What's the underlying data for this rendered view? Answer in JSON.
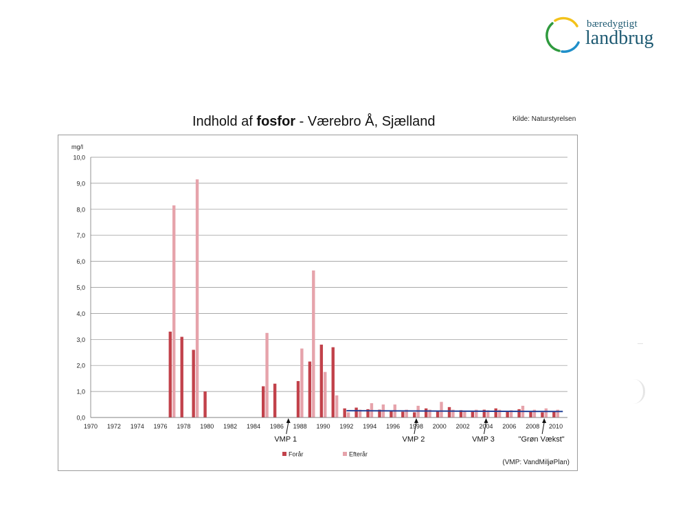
{
  "logo": {
    "small_text": "bæredygtigt",
    "big_text": "landbrug",
    "colors": {
      "yellow": "#f3c21a",
      "green": "#2f9a3e",
      "blue": "#1f8fc9",
      "text": "#1e5a72"
    }
  },
  "source": "Kilde: Naturstyrelsen",
  "chart_data": {
    "type": "bar",
    "title_plain": "Indhold af ",
    "title_bold": "fosfor",
    "title_rest": " - Værebro Å, Sjælland",
    "ylabel": "mg/l",
    "xlabel": "",
    "ylim": [
      0,
      10
    ],
    "yticks": [
      "0,0",
      "1,0",
      "2,0",
      "3,0",
      "4,0",
      "5,0",
      "6,0",
      "7,0",
      "8,0",
      "9,0",
      "10,0"
    ],
    "xlim": [
      1970,
      2011
    ],
    "xticks": [
      "1970",
      "1972",
      "1974",
      "1976",
      "1978",
      "1980",
      "1982",
      "1984",
      "1986",
      "1988",
      "1990",
      "1992",
      "1994",
      "1996",
      "1998",
      "2000",
      "2002",
      "2004",
      "2006",
      "2008",
      "2010"
    ],
    "grid": true,
    "series": [
      {
        "name": "Forår",
        "color": "#c2424b",
        "points": [
          [
            1977,
            3.3
          ],
          [
            1978,
            3.1
          ],
          [
            1979,
            2.6
          ],
          [
            1980,
            1.0
          ],
          [
            1985,
            1.2
          ],
          [
            1986,
            1.3
          ],
          [
            1988,
            1.4
          ],
          [
            1989,
            2.15
          ],
          [
            1990,
            2.8
          ],
          [
            1991,
            2.7
          ],
          [
            1992,
            0.35
          ],
          [
            1993,
            0.38
          ],
          [
            1994,
            0.32
          ],
          [
            1995,
            0.3
          ],
          [
            1996,
            0.25
          ],
          [
            1997,
            0.22
          ],
          [
            1998,
            0.2
          ],
          [
            1999,
            0.35
          ],
          [
            2000,
            0.25
          ],
          [
            2001,
            0.4
          ],
          [
            2002,
            0.28
          ],
          [
            2003,
            0.22
          ],
          [
            2004,
            0.3
          ],
          [
            2005,
            0.35
          ],
          [
            2006,
            0.25
          ],
          [
            2007,
            0.32
          ],
          [
            2008,
            0.25
          ],
          [
            2009,
            0.2
          ],
          [
            2010,
            0.25
          ]
        ]
      },
      {
        "name": "Efterår",
        "color": "#e6a3ab",
        "points": [
          [
            1977,
            8.15
          ],
          [
            1979,
            9.15
          ],
          [
            1985,
            3.25
          ],
          [
            1988,
            2.65
          ],
          [
            1989,
            5.65
          ],
          [
            1990,
            1.75
          ],
          [
            1991,
            0.85
          ],
          [
            1992,
            0.2
          ],
          [
            1993,
            0.3
          ],
          [
            1994,
            0.55
          ],
          [
            1995,
            0.5
          ],
          [
            1996,
            0.5
          ],
          [
            1997,
            0.3
          ],
          [
            1998,
            0.45
          ],
          [
            1999,
            0.3
          ],
          [
            2000,
            0.6
          ],
          [
            2001,
            0.3
          ],
          [
            2002,
            0.25
          ],
          [
            2003,
            0.3
          ],
          [
            2004,
            0.28
          ],
          [
            2005,
            0.3
          ],
          [
            2006,
            0.28
          ],
          [
            2007,
            0.45
          ],
          [
            2008,
            0.3
          ],
          [
            2009,
            0.35
          ],
          [
            2010,
            0.3
          ]
        ]
      }
    ],
    "trend_line": {
      "color": "#1f3f96",
      "x": [
        1992,
        2010
      ],
      "y": [
        0.26,
        0.23
      ]
    },
    "annotations": [
      {
        "text": "VMP 1",
        "x": 1987
      },
      {
        "text": "VMP 2",
        "x": 1998
      },
      {
        "text": "VMP 3",
        "x": 2004
      },
      {
        "text": "\"Grøn Vækst\"",
        "x": 2009
      }
    ],
    "note": "(VMP: VandMiljøPlan)",
    "legend_position": "bottom"
  }
}
